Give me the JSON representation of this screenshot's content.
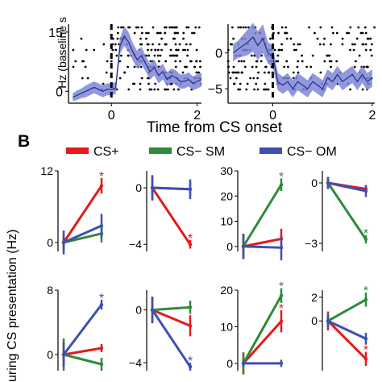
{
  "colors": {
    "cs_plus": "#e41a1c",
    "cs_sm": "#2e8b3a",
    "cs_om": "#3f4fb3",
    "band": "#7f86d6",
    "mean_line": "#1f2d8a",
    "dots": "#000000"
  },
  "panel_a": {
    "ylabel": "Hz (baseline s",
    "xlabel": "Time from CS onset"
  },
  "panel_b": {
    "label": "B",
    "ylabel": "uring CS presentation (Hz)"
  },
  "legend": [
    {
      "label": "CS+",
      "color": "#e41a1c"
    },
    {
      "label": "CS− SM",
      "color": "#2e8b3a"
    },
    {
      "label": "CS− OM",
      "color": "#3f4fb3"
    }
  ],
  "chart_data": [
    {
      "type": "area",
      "panel": "A-left",
      "x_ticks": [
        "0",
        "2"
      ],
      "y_ticks": [
        "0",
        "15"
      ],
      "xlim": [
        -1,
        2.1
      ],
      "ylim": [
        -3,
        17
      ],
      "series": [
        {
          "x": [
            -0.9,
            -0.8,
            -0.7,
            -0.6,
            -0.5,
            -0.4,
            -0.3,
            -0.2,
            -0.1,
            0.0,
            0.1,
            0.2,
            0.3,
            0.4,
            0.5,
            0.6,
            0.7,
            0.8,
            0.9,
            1.0,
            1.1,
            1.2,
            1.3,
            1.4,
            1.5,
            1.6,
            1.7,
            1.8,
            1.9,
            2.0,
            2.1
          ],
          "y": [
            -1.5,
            -1.0,
            -0.5,
            0.0,
            0.5,
            1.0,
            0.5,
            0.0,
            0.5,
            0.5,
            0.8,
            11.5,
            14.0,
            12.5,
            10.0,
            8.0,
            9.0,
            7.0,
            5.0,
            6.0,
            4.0,
            5.0,
            3.0,
            4.0,
            3.5,
            2.5,
            2.5,
            3.0,
            2.0,
            2.5,
            3.0
          ],
          "err": [
            1.0,
            1.2,
            1.2,
            1.5,
            1.5,
            1.5,
            1.5,
            1.5,
            1.5,
            1.5,
            1.5,
            2.0,
            2.5,
            2.5,
            2.2,
            2.2,
            2.2,
            2.0,
            2.0,
            2.0,
            2.0,
            2.0,
            1.8,
            1.8,
            1.8,
            1.8,
            1.8,
            1.8,
            1.8,
            1.8,
            1.8
          ]
        }
      ],
      "rasters": "black dot raster behind trace"
    },
    {
      "type": "area",
      "panel": "A-right",
      "x_ticks": [
        "0",
        "2"
      ],
      "y_ticks": [
        "0",
        "−5"
      ],
      "xlim": [
        -0.9,
        2.05
      ],
      "ylim": [
        -7,
        4
      ],
      "series": [
        {
          "x": [
            -0.8,
            -0.7,
            -0.6,
            -0.5,
            -0.4,
            -0.3,
            -0.2,
            -0.1,
            0.0,
            0.1,
            0.2,
            0.3,
            0.4,
            0.5,
            0.6,
            0.7,
            0.8,
            0.9,
            1.0,
            1.1,
            1.2,
            1.3,
            1.4,
            1.5,
            1.6,
            1.7,
            1.8,
            1.9,
            2.0
          ],
          "y": [
            0.0,
            0.5,
            1.0,
            1.5,
            2.2,
            1.0,
            2.0,
            0.0,
            -0.5,
            -4.0,
            -4.5,
            -4.0,
            -5.0,
            -4.0,
            -4.5,
            -5.0,
            -4.0,
            -4.5,
            -5.0,
            -3.5,
            -4.0,
            -3.0,
            -4.0,
            -3.5,
            -3.0,
            -4.0,
            -3.0,
            -4.0,
            -3.5
          ],
          "err": [
            1.2,
            1.2,
            1.5,
            1.8,
            2.0,
            2.0,
            2.0,
            1.5,
            1.5,
            1.2,
            1.2,
            1.2,
            1.2,
            1.2,
            1.2,
            1.2,
            1.2,
            1.2,
            1.2,
            1.2,
            1.2,
            1.2,
            1.2,
            1.2,
            1.2,
            1.2,
            1.2,
            1.2,
            1.2
          ]
        }
      ],
      "rasters": "black dot raster behind trace"
    },
    {
      "type": "line",
      "panel": "B-r1c1",
      "y_ticks": [
        "0",
        "12"
      ],
      "ylim": [
        -1.5,
        12
      ],
      "series": [
        {
          "color": "#e41a1c",
          "values": [
            0,
            9.5
          ],
          "err": [
            0.8,
            1.3
          ],
          "sig": true
        },
        {
          "color": "#2e8b3a",
          "values": [
            0,
            1.5
          ],
          "err": [
            1.5,
            1.5
          ],
          "sig": false
        },
        {
          "color": "#3f4fb3",
          "values": [
            0,
            2.8
          ],
          "err": [
            2.0,
            2.0
          ],
          "sig": false
        }
      ]
    },
    {
      "type": "line",
      "panel": "B-r1c2",
      "y_ticks": [
        "0",
        "−4"
      ],
      "ylim": [
        -4.5,
        1.2
      ],
      "series": [
        {
          "color": "#e41a1c",
          "values": [
            0,
            -4.0
          ],
          "err": [
            0.8,
            0.3
          ],
          "sig": true
        },
        {
          "color": "#2e8b3a",
          "values": [
            0,
            -0.1
          ],
          "err": [
            0.6,
            0.5
          ],
          "sig": false
        },
        {
          "color": "#3f4fb3",
          "values": [
            0,
            -0.1
          ],
          "err": [
            0.9,
            0.7
          ],
          "sig": false
        }
      ]
    },
    {
      "type": "line",
      "panel": "B-r1c3",
      "y_ticks": [
        "0",
        "10",
        "20",
        "30"
      ],
      "ylim": [
        -2,
        30
      ],
      "series": [
        {
          "color": "#e41a1c",
          "values": [
            0,
            3.0
          ],
          "err": [
            5.0,
            4.0
          ],
          "sig": false
        },
        {
          "color": "#2e8b3a",
          "values": [
            0,
            24.5
          ],
          "err": [
            5.0,
            2.5
          ],
          "sig": true
        },
        {
          "color": "#3f4fb3",
          "values": [
            0,
            -0.5
          ],
          "err": [
            5.0,
            5.0
          ],
          "sig": false
        }
      ]
    },
    {
      "type": "line",
      "panel": "B-r1c4",
      "y_ticks": [
        "0",
        "−3"
      ],
      "ylim": [
        -3.4,
        0.6
      ],
      "series": [
        {
          "color": "#e41a1c",
          "values": [
            0,
            -0.3
          ],
          "err": [
            0.3,
            0.2
          ],
          "sig": false
        },
        {
          "color": "#2e8b3a",
          "values": [
            0,
            -2.8
          ],
          "err": [
            0.3,
            0.2
          ],
          "sig": true
        },
        {
          "color": "#3f4fb3",
          "values": [
            0,
            -0.4
          ],
          "err": [
            0.3,
            0.3
          ],
          "sig": false
        }
      ]
    },
    {
      "type": "line",
      "panel": "B-r2c1",
      "y_ticks": [
        "0",
        "8"
      ],
      "ylim": [
        -2,
        8
      ],
      "series": [
        {
          "color": "#e41a1c",
          "values": [
            0,
            0.8
          ],
          "err": [
            1.5,
            0.5
          ],
          "sig": false
        },
        {
          "color": "#2e8b3a",
          "values": [
            0,
            -1.2
          ],
          "err": [
            2.0,
            0.8
          ],
          "sig": false
        },
        {
          "color": "#3f4fb3",
          "values": [
            0,
            6.2
          ],
          "err": [
            1.5,
            0.6
          ],
          "sig": true
        }
      ]
    },
    {
      "type": "line",
      "panel": "B-r2c2",
      "y_ticks": [
        "0",
        "−4"
      ],
      "ylim": [
        -4.6,
        1.5
      ],
      "series": [
        {
          "color": "#e41a1c",
          "values": [
            0,
            -1.2
          ],
          "err": [
            1.0,
            0.8
          ],
          "sig": false
        },
        {
          "color": "#2e8b3a",
          "values": [
            0,
            0.2
          ],
          "err": [
            1.0,
            0.5
          ],
          "sig": false
        },
        {
          "color": "#3f4fb3",
          "values": [
            0,
            -4.3
          ],
          "err": [
            1.0,
            0.3
          ],
          "sig": true
        }
      ]
    },
    {
      "type": "line",
      "panel": "B-r2c3",
      "y_ticks": [
        "0",
        "10",
        "20"
      ],
      "ylim": [
        -2,
        20
      ],
      "series": [
        {
          "color": "#e41a1c",
          "values": [
            0,
            11.5
          ],
          "err": [
            3.0,
            3.0
          ],
          "sig": true
        },
        {
          "color": "#2e8b3a",
          "values": [
            0,
            18.5
          ],
          "err": [
            3.0,
            2.0
          ],
          "sig": true
        },
        {
          "color": "#3f4fb3",
          "values": [
            0,
            0.0
          ],
          "err": [
            1.0,
            1.0
          ],
          "sig": false
        }
      ]
    },
    {
      "type": "line",
      "panel": "B-r2c4",
      "y_ticks": [
        "0",
        "2"
      ],
      "ylim": [
        -4.2,
        2.6
      ],
      "series": [
        {
          "color": "#e41a1c",
          "values": [
            0,
            -3.2
          ],
          "err": [
            0.8,
            0.6
          ],
          "sig": true
        },
        {
          "color": "#2e8b3a",
          "values": [
            0,
            1.8
          ],
          "err": [
            0.6,
            0.6
          ],
          "sig": true
        },
        {
          "color": "#3f4fb3",
          "values": [
            0,
            -1.5
          ],
          "err": [
            0.5,
            0.5
          ],
          "sig": false
        }
      ]
    }
  ]
}
